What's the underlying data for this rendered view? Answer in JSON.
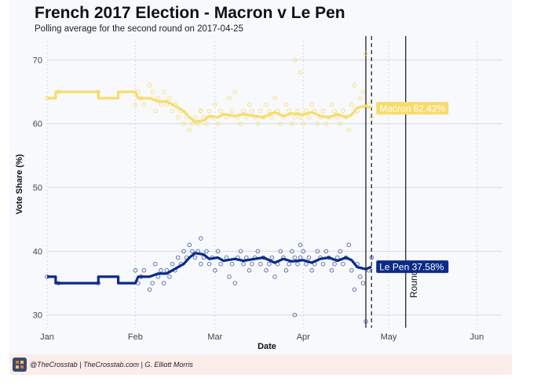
{
  "title": "French 2017 Election - Macron v Le Pen",
  "subtitle": "Polling average for the second round on 2017-04-25",
  "footer": {
    "credit": "@TheCrosstab | TheCrosstab.com | G. Elliott Morris"
  },
  "colors": {
    "macron": "#f8dc6b",
    "lepen": "#0b2b8a",
    "background": "#f7f9fc",
    "footer_bg": "#fcecea"
  },
  "chart_data": {
    "type": "line",
    "title": "French 2017 Election - Macron v Le Pen",
    "subtitle": "Polling average for the second round on 2017-04-25",
    "xlabel": "Date",
    "ylabel": "Vote Share (%)",
    "xlim": [
      "2017-01-01",
      "2017-06-10"
    ],
    "ylim": [
      28,
      73
    ],
    "x_ticks": [
      {
        "date": "2017-01-01",
        "label": "Jan"
      },
      {
        "date": "2017-02-01",
        "label": "Feb"
      },
      {
        "date": "2017-03-01",
        "label": "Mar"
      },
      {
        "date": "2017-04-01",
        "label": "Apr"
      },
      {
        "date": "2017-05-01",
        "label": "May"
      },
      {
        "date": "2017-06-01",
        "label": "Jun"
      }
    ],
    "y_ticks": [
      30,
      40,
      50,
      60,
      70
    ],
    "grid": true,
    "series": [
      {
        "name": "Macron",
        "end_label": "Macron 62.42%",
        "average": [
          [
            "2017-01-01",
            64
          ],
          [
            "2017-01-04",
            64
          ],
          [
            "2017-01-04",
            65
          ],
          [
            "2017-01-19",
            65
          ],
          [
            "2017-01-19",
            64
          ],
          [
            "2017-01-26",
            64
          ],
          [
            "2017-01-26",
            65
          ],
          [
            "2017-02-01",
            65
          ],
          [
            "2017-02-02",
            64
          ],
          [
            "2017-02-06",
            64
          ],
          [
            "2017-02-09",
            63.5
          ],
          [
            "2017-02-12",
            63.5
          ],
          [
            "2017-02-14",
            63
          ],
          [
            "2017-02-16",
            62.5
          ],
          [
            "2017-02-18",
            62
          ],
          [
            "2017-02-20",
            61
          ],
          [
            "2017-02-22",
            60.3
          ],
          [
            "2017-02-25",
            60.5
          ],
          [
            "2017-02-27",
            61.2
          ],
          [
            "2017-03-02",
            61
          ],
          [
            "2017-03-04",
            61.5
          ],
          [
            "2017-03-08",
            61.2
          ],
          [
            "2017-03-11",
            61.5
          ],
          [
            "2017-03-15",
            61.2
          ],
          [
            "2017-03-18",
            61
          ],
          [
            "2017-03-22",
            61.8
          ],
          [
            "2017-03-25",
            61.2
          ],
          [
            "2017-03-28",
            61.6
          ],
          [
            "2017-04-01",
            61.4
          ],
          [
            "2017-04-04",
            61.8
          ],
          [
            "2017-04-07",
            61.2
          ],
          [
            "2017-04-10",
            61
          ],
          [
            "2017-04-13",
            61.5
          ],
          [
            "2017-04-16",
            61
          ],
          [
            "2017-04-18",
            61.4
          ],
          [
            "2017-04-20",
            62.5
          ],
          [
            "2017-04-23",
            62.8
          ],
          [
            "2017-04-25",
            62.42
          ]
        ],
        "polls": [
          [
            "2017-01-01",
            64
          ],
          [
            "2017-01-05",
            65
          ],
          [
            "2017-01-19",
            65
          ],
          [
            "2017-02-01",
            63
          ],
          [
            "2017-02-02",
            65
          ],
          [
            "2017-02-03",
            64
          ],
          [
            "2017-02-04",
            63
          ],
          [
            "2017-02-06",
            66
          ],
          [
            "2017-02-07",
            65
          ],
          [
            "2017-02-08",
            62
          ],
          [
            "2017-02-09",
            64
          ],
          [
            "2017-02-10",
            63
          ],
          [
            "2017-02-11",
            65
          ],
          [
            "2017-02-12",
            63
          ],
          [
            "2017-02-13",
            64
          ],
          [
            "2017-02-14",
            62
          ],
          [
            "2017-02-15",
            63
          ],
          [
            "2017-02-16",
            61
          ],
          [
            "2017-02-17",
            62
          ],
          [
            "2017-02-18",
            60
          ],
          [
            "2017-02-19",
            61
          ],
          [
            "2017-02-20",
            59
          ],
          [
            "2017-02-21",
            60
          ],
          [
            "2017-02-22",
            61
          ],
          [
            "2017-02-23",
            60
          ],
          [
            "2017-02-24",
            62
          ],
          [
            "2017-02-25",
            61
          ],
          [
            "2017-02-26",
            60
          ],
          [
            "2017-02-27",
            62
          ],
          [
            "2017-02-28",
            61
          ],
          [
            "2017-03-01",
            63
          ],
          [
            "2017-03-02",
            60
          ],
          [
            "2017-03-03",
            62
          ],
          [
            "2017-03-05",
            61
          ],
          [
            "2017-03-06",
            64
          ],
          [
            "2017-03-07",
            62
          ],
          [
            "2017-03-08",
            65
          ],
          [
            "2017-03-09",
            61
          ],
          [
            "2017-03-10",
            60
          ],
          [
            "2017-03-11",
            62
          ],
          [
            "2017-03-12",
            61
          ],
          [
            "2017-03-13",
            63
          ],
          [
            "2017-03-14",
            62
          ],
          [
            "2017-03-15",
            61
          ],
          [
            "2017-03-16",
            60
          ],
          [
            "2017-03-17",
            62
          ],
          [
            "2017-03-18",
            61
          ],
          [
            "2017-03-19",
            63
          ],
          [
            "2017-03-20",
            62
          ],
          [
            "2017-03-21",
            61
          ],
          [
            "2017-03-22",
            64
          ],
          [
            "2017-03-23",
            62
          ],
          [
            "2017-03-24",
            60
          ],
          [
            "2017-03-25",
            61
          ],
          [
            "2017-03-26",
            63
          ],
          [
            "2017-03-27",
            62
          ],
          [
            "2017-03-28",
            60
          ],
          [
            "2017-03-29",
            61
          ],
          [
            "2017-03-30",
            62
          ],
          [
            "2017-03-31",
            61
          ],
          [
            "2017-04-01",
            60
          ],
          [
            "2017-04-02",
            62
          ],
          [
            "2017-04-03",
            61
          ],
          [
            "2017-04-04",
            63
          ],
          [
            "2017-04-05",
            62
          ],
          [
            "2017-04-06",
            60
          ],
          [
            "2017-04-07",
            61
          ],
          [
            "2017-04-08",
            62
          ],
          [
            "2017-04-09",
            60
          ],
          [
            "2017-04-10",
            61
          ],
          [
            "2017-04-11",
            63
          ],
          [
            "2017-04-12",
            62
          ],
          [
            "2017-04-13",
            61
          ],
          [
            "2017-04-14",
            60
          ],
          [
            "2017-04-15",
            62
          ],
          [
            "2017-04-16",
            61
          ],
          [
            "2017-04-17",
            59
          ],
          [
            "2017-04-18",
            63
          ],
          [
            "2017-04-19",
            66
          ],
          [
            "2017-04-20",
            62
          ],
          [
            "2017-04-21",
            64
          ],
          [
            "2017-04-22",
            65
          ],
          [
            "2017-04-23",
            71
          ],
          [
            "2017-04-24",
            63
          ],
          [
            "2017-04-25",
            61
          ],
          [
            "2017-03-29",
            70
          ],
          [
            "2017-02-24",
            62
          ],
          [
            "2017-03-31",
            68
          ]
        ]
      },
      {
        "name": "Le Pen",
        "end_label": "Le Pen 37.58%",
        "average": [
          [
            "2017-01-01",
            36
          ],
          [
            "2017-01-04",
            36
          ],
          [
            "2017-01-04",
            35
          ],
          [
            "2017-01-19",
            35
          ],
          [
            "2017-01-19",
            36
          ],
          [
            "2017-01-26",
            36
          ],
          [
            "2017-01-26",
            35
          ],
          [
            "2017-02-01",
            35
          ],
          [
            "2017-02-02",
            36
          ],
          [
            "2017-02-06",
            36
          ],
          [
            "2017-02-09",
            36.5
          ],
          [
            "2017-02-12",
            36.5
          ],
          [
            "2017-02-14",
            37
          ],
          [
            "2017-02-16",
            37.5
          ],
          [
            "2017-02-18",
            38
          ],
          [
            "2017-02-20",
            39
          ],
          [
            "2017-02-22",
            39.7
          ],
          [
            "2017-02-25",
            39.5
          ],
          [
            "2017-02-27",
            38.8
          ],
          [
            "2017-03-02",
            39
          ],
          [
            "2017-03-04",
            38.5
          ],
          [
            "2017-03-08",
            38.8
          ],
          [
            "2017-03-11",
            38.5
          ],
          [
            "2017-03-15",
            38.8
          ],
          [
            "2017-03-18",
            39
          ],
          [
            "2017-03-22",
            38.2
          ],
          [
            "2017-03-25",
            38.8
          ],
          [
            "2017-03-28",
            38.4
          ],
          [
            "2017-04-01",
            38.6
          ],
          [
            "2017-04-04",
            38.2
          ],
          [
            "2017-04-07",
            38.8
          ],
          [
            "2017-04-10",
            39
          ],
          [
            "2017-04-13",
            38.5
          ],
          [
            "2017-04-16",
            39
          ],
          [
            "2017-04-18",
            38.6
          ],
          [
            "2017-04-20",
            37.5
          ],
          [
            "2017-04-23",
            37.2
          ],
          [
            "2017-04-25",
            37.58
          ]
        ],
        "polls": [
          [
            "2017-01-01",
            36
          ],
          [
            "2017-01-05",
            35
          ],
          [
            "2017-01-19",
            35
          ],
          [
            "2017-02-01",
            37
          ],
          [
            "2017-02-02",
            35
          ],
          [
            "2017-02-03",
            36
          ],
          [
            "2017-02-04",
            37
          ],
          [
            "2017-02-06",
            34
          ],
          [
            "2017-02-07",
            35
          ],
          [
            "2017-02-08",
            38
          ],
          [
            "2017-02-09",
            36
          ],
          [
            "2017-02-10",
            37
          ],
          [
            "2017-02-11",
            35
          ],
          [
            "2017-02-12",
            37
          ],
          [
            "2017-02-13",
            36
          ],
          [
            "2017-02-14",
            38
          ],
          [
            "2017-02-15",
            37
          ],
          [
            "2017-02-16",
            39
          ],
          [
            "2017-02-17",
            38
          ],
          [
            "2017-02-18",
            40
          ],
          [
            "2017-02-19",
            39
          ],
          [
            "2017-02-20",
            41
          ],
          [
            "2017-02-21",
            40
          ],
          [
            "2017-02-22",
            39
          ],
          [
            "2017-02-23",
            40
          ],
          [
            "2017-02-24",
            38
          ],
          [
            "2017-02-25",
            39
          ],
          [
            "2017-02-26",
            40
          ],
          [
            "2017-02-27",
            38
          ],
          [
            "2017-02-28",
            39
          ],
          [
            "2017-03-01",
            37
          ],
          [
            "2017-03-02",
            40
          ],
          [
            "2017-03-03",
            38
          ],
          [
            "2017-03-05",
            39
          ],
          [
            "2017-03-06",
            36
          ],
          [
            "2017-03-07",
            38
          ],
          [
            "2017-03-08",
            35
          ],
          [
            "2017-03-09",
            39
          ],
          [
            "2017-03-10",
            40
          ],
          [
            "2017-03-11",
            38
          ],
          [
            "2017-03-12",
            39
          ],
          [
            "2017-03-13",
            37
          ],
          [
            "2017-03-14",
            38
          ],
          [
            "2017-03-15",
            39
          ],
          [
            "2017-03-16",
            40
          ],
          [
            "2017-03-17",
            38
          ],
          [
            "2017-03-18",
            39
          ],
          [
            "2017-03-19",
            37
          ],
          [
            "2017-03-20",
            38
          ],
          [
            "2017-03-21",
            39
          ],
          [
            "2017-03-22",
            36
          ],
          [
            "2017-03-23",
            38
          ],
          [
            "2017-03-24",
            40
          ],
          [
            "2017-03-25",
            39
          ],
          [
            "2017-03-26",
            37
          ],
          [
            "2017-03-27",
            38
          ],
          [
            "2017-03-28",
            40
          ],
          [
            "2017-03-29",
            39
          ],
          [
            "2017-03-30",
            38
          ],
          [
            "2017-03-31",
            39
          ],
          [
            "2017-04-01",
            40
          ],
          [
            "2017-04-02",
            38
          ],
          [
            "2017-04-03",
            39
          ],
          [
            "2017-04-04",
            37
          ],
          [
            "2017-04-05",
            38
          ],
          [
            "2017-04-06",
            40
          ],
          [
            "2017-04-07",
            39
          ],
          [
            "2017-04-08",
            38
          ],
          [
            "2017-04-09",
            40
          ],
          [
            "2017-04-10",
            39
          ],
          [
            "2017-04-11",
            37
          ],
          [
            "2017-04-12",
            38
          ],
          [
            "2017-04-13",
            39
          ],
          [
            "2017-04-14",
            40
          ],
          [
            "2017-04-15",
            38
          ],
          [
            "2017-04-16",
            39
          ],
          [
            "2017-04-17",
            41
          ],
          [
            "2017-04-18",
            37
          ],
          [
            "2017-04-19",
            34
          ],
          [
            "2017-04-20",
            38
          ],
          [
            "2017-04-21",
            36
          ],
          [
            "2017-04-22",
            35
          ],
          [
            "2017-04-23",
            29
          ],
          [
            "2017-04-24",
            37
          ],
          [
            "2017-04-25",
            39
          ],
          [
            "2017-03-29",
            30
          ],
          [
            "2017-02-24",
            42
          ],
          [
            "2017-03-31",
            41
          ]
        ]
      }
    ],
    "annotations": [
      {
        "type": "vline",
        "date": "2017-04-23",
        "style": "solid"
      },
      {
        "type": "vline",
        "date": "2017-04-25",
        "style": "dashed"
      },
      {
        "type": "vline",
        "date": "2017-05-07",
        "style": "solid",
        "label": "Round"
      }
    ]
  }
}
